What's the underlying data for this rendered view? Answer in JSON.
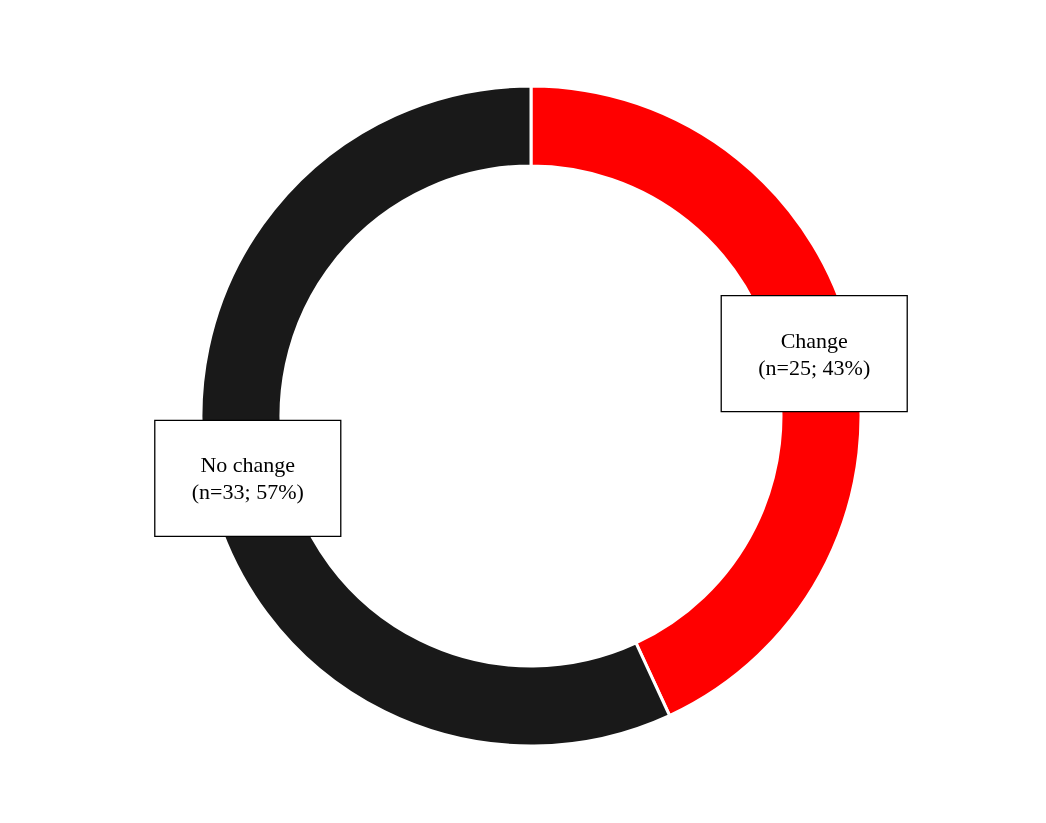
{
  "chart_data": {
    "type": "donut",
    "categories": [
      "Change",
      "No change"
    ],
    "values": [
      25,
      33
    ],
    "colors": [
      "#ff0000",
      "#191919"
    ],
    "value_labels": [
      "(n=25; 43%)",
      "(n=33; 57%)"
    ]
  }
}
